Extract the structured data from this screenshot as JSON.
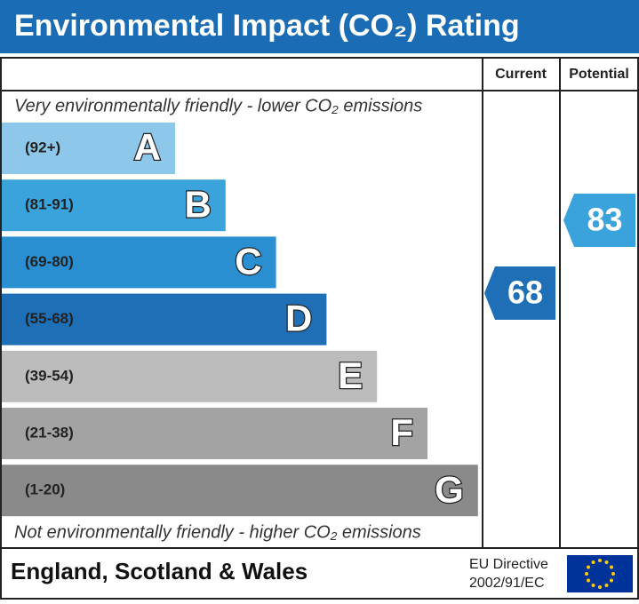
{
  "header": {
    "title": "Environmental Impact (CO₂) Rating"
  },
  "columns": {
    "current": "Current",
    "potential": "Potential"
  },
  "top_note": "Very environmentally friendly - lower CO₂ emissions",
  "bottom_note": "Not environmentally friendly - higher CO₂ emissions",
  "bands": [
    {
      "range": "(92+)",
      "letter": "A",
      "color": "#8dc8ea"
    },
    {
      "range": "(81-91)",
      "letter": "B",
      "color": "#3aa3dc"
    },
    {
      "range": "(69-80)",
      "letter": "C",
      "color": "#2a8fd0"
    },
    {
      "range": "(55-68)",
      "letter": "D",
      "color": "#1f6fb7"
    },
    {
      "range": "(39-54)",
      "letter": "E",
      "color": "#bcbcbc"
    },
    {
      "range": "(21-38)",
      "letter": "F",
      "color": "#a3a3a3"
    },
    {
      "range": "(1-20)",
      "letter": "G",
      "color": "#8a8a8a"
    }
  ],
  "current": {
    "value": 68,
    "color": "#1f6fb7"
  },
  "potential": {
    "value": 83,
    "color": "#3aa3dc"
  },
  "footer": {
    "region": "England, Scotland & Wales",
    "directive_line1": "EU Directive",
    "directive_line2": "2002/91/EC"
  }
}
